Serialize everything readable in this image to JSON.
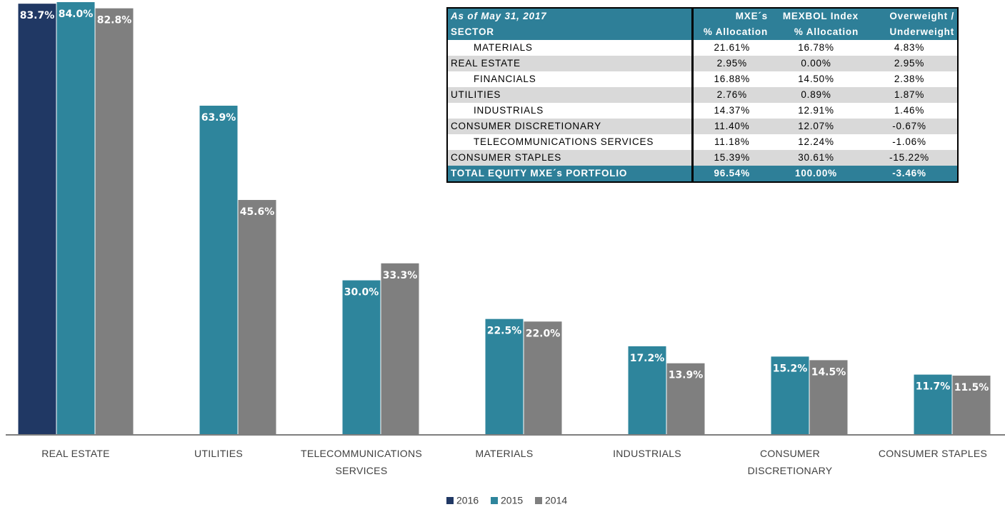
{
  "chart_data": {
    "type": "bar",
    "categories": [
      "REAL ESTATE",
      "UTILITIES",
      "TELECOMMUNICATIONS SERVICES",
      "MATERIALS",
      "INDUSTRIALS",
      "CONSUMER DISCRETIONARY",
      "CONSUMER STAPLES"
    ],
    "series": [
      {
        "name": "2016",
        "color": "#203864",
        "values": [
          83.7,
          null,
          null,
          null,
          null,
          null,
          null
        ],
        "value_labels": [
          "83.7%",
          null,
          null,
          null,
          null,
          null,
          null
        ]
      },
      {
        "name": "2015",
        "color": "#2e859c",
        "values": [
          84.0,
          63.9,
          30.0,
          22.5,
          17.2,
          15.2,
          11.7
        ],
        "value_labels": [
          "84.0%",
          "63.9%",
          "30.0%",
          "22.5%",
          "17.2%",
          "15.2%",
          "11.7%"
        ]
      },
      {
        "name": "2014",
        "color": "#7f7f7f",
        "values": [
          82.8,
          45.6,
          33.3,
          22.0,
          13.9,
          14.5,
          11.5
        ],
        "value_labels": [
          "82.8%",
          "45.6%",
          "33.3%",
          "22.0%",
          "13.9%",
          "14.5%",
          "11.5%"
        ]
      }
    ]
  },
  "table": {
    "header": [
      [
        "As of May 31, 2017",
        "MXE´s",
        "MEXBOL Index",
        "Overweight /"
      ],
      [
        "SECTOR",
        "% Allocation",
        "% Allocation",
        "Underweight"
      ]
    ],
    "rows": [
      [
        "MATERIALS",
        "21.61%",
        "16.78%",
        "4.83%"
      ],
      [
        "REAL ESTATE",
        "2.95%",
        "0.00%",
        "2.95%"
      ],
      [
        "FINANCIALS",
        "16.88%",
        "14.50%",
        "2.38%"
      ],
      [
        "UTILITIES",
        "2.76%",
        "0.89%",
        "1.87%"
      ],
      [
        "INDUSTRIALS",
        "14.37%",
        "12.91%",
        "1.46%"
      ],
      [
        "CONSUMER DISCRETIONARY",
        "11.40%",
        "12.07%",
        "-0.67%"
      ],
      [
        "TELECOMMUNICATIONS SERVICES",
        "11.18%",
        "12.24%",
        "-1.06%"
      ],
      [
        "CONSUMER STAPLES",
        "15.39%",
        "30.61%",
        "-15.22%"
      ]
    ],
    "total": [
      "TOTAL EQUITY MXE´s PORTFOLIO",
      "96.54%",
      "100.00%",
      "-3.46%"
    ]
  }
}
